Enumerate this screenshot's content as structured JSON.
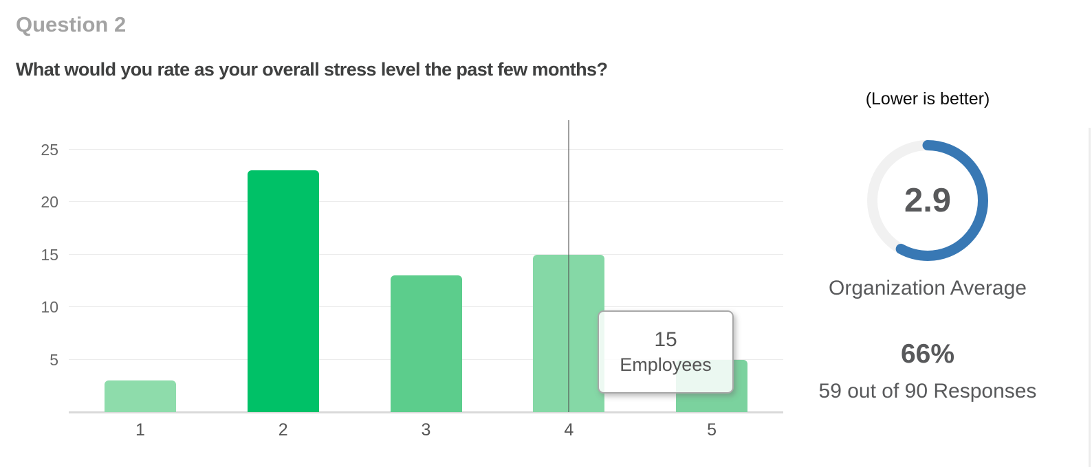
{
  "page": {
    "section_label": "Question 2",
    "question": "What would you rate as your overall stress level the past few months?"
  },
  "chart_data": {
    "type": "bar",
    "categories": [
      "1",
      "2",
      "3",
      "4",
      "5"
    ],
    "values": [
      3,
      23,
      13,
      15,
      5
    ],
    "bar_colors": [
      "#8edcab",
      "#00c167",
      "#5ccd8c",
      "#85d8a6",
      "#7bd29e"
    ],
    "title": "",
    "xlabel": "",
    "ylabel": "",
    "ylim": [
      0,
      28
    ],
    "yticks": [
      5,
      10,
      15,
      20,
      25
    ],
    "grid": true,
    "legend": "none",
    "hover": {
      "category": "4",
      "tooltip_value": "15",
      "tooltip_label": "Employees"
    }
  },
  "summary": {
    "note": "(Lower is better)",
    "gauge": {
      "value": "2.9",
      "max": 5,
      "label": "Organization Average",
      "arc_color": "#3878b4",
      "track_color": "#f1f1f1"
    },
    "response_rate": "66%",
    "response_detail": "59 out of 90 Responses"
  }
}
